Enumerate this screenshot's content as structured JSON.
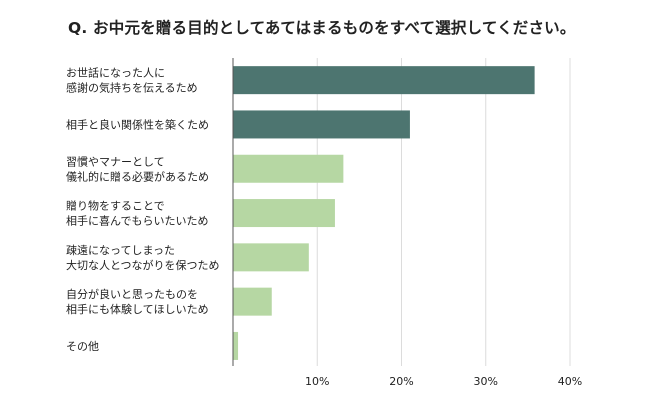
{
  "chart_data": {
    "type": "bar",
    "orientation": "horizontal",
    "title": "Q. お中元を贈る目的としてあてはまるものをすべて選択してください。",
    "categories": [
      [
        "お世話になった人に",
        "感謝の気持ちを伝えるため"
      ],
      [
        "相手と良い関係性を築くため"
      ],
      [
        "習慣やマナーとして",
        "儀礼的に贈る必要があるため"
      ],
      [
        "贈り物をすることで",
        "相手に喜んでもらいたいため"
      ],
      [
        "疎遠になってしまった",
        "大切な人とつながりを保つため"
      ],
      [
        "自分が良いと思ったものを",
        "相手にも体験してほしいため"
      ],
      [
        "その他"
      ]
    ],
    "values": [
      35.8,
      21.0,
      13.1,
      12.1,
      9.0,
      4.6,
      0.6
    ],
    "xlim": [
      0,
      40
    ],
    "ticks": [
      10,
      20,
      30,
      40
    ],
    "tick_labels": [
      "10%",
      "20%",
      "30%",
      "40%"
    ],
    "grid": true,
    "highlight_count": 2,
    "colors": {
      "highlight": "#4d7570",
      "normal": "#b6d7a3",
      "grid": "#dcdcdc",
      "axis": "#555555"
    }
  }
}
